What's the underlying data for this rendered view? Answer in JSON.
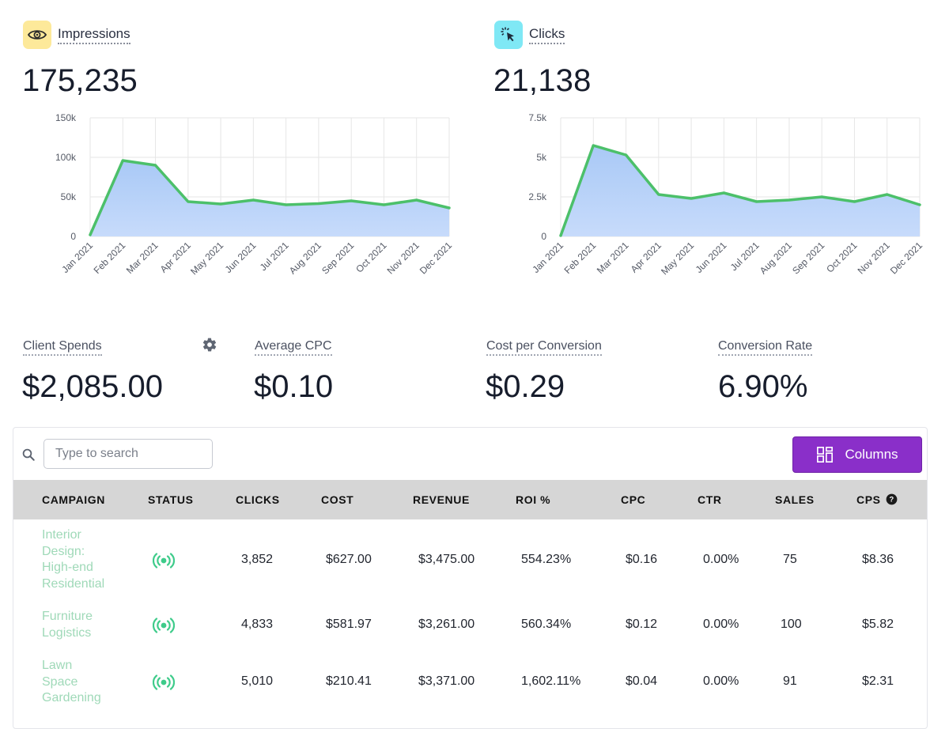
{
  "impressions": {
    "label": "Impressions",
    "icon": "eye-icon",
    "value": "175,235",
    "chart_data": {
      "type": "area",
      "categories": [
        "Jan 2021",
        "Feb 2021",
        "Mar 2021",
        "Apr 2021",
        "May 2021",
        "Jun 2021",
        "Jul 2021",
        "Aug 2021",
        "Sep 2021",
        "Oct 2021",
        "Nov 2021",
        "Dec 2021"
      ],
      "values": [
        2000,
        96000,
        90000,
        44000,
        41000,
        46000,
        40000,
        41500,
        45000,
        40000,
        46000,
        36000
      ],
      "ylim": [
        0,
        150000
      ],
      "yticks": [
        0,
        50000,
        100000,
        150000
      ],
      "ytick_labels": [
        "0",
        "50k",
        "100k",
        "150k"
      ],
      "line_color": "#4cc06a",
      "fill_color": "#a9c9f6",
      "grid": true
    }
  },
  "clicks": {
    "label": "Clicks",
    "icon": "cursor-click-icon",
    "value": "21,138",
    "chart_data": {
      "type": "area",
      "categories": [
        "Jan 2021",
        "Feb 2021",
        "Mar 2021",
        "Apr 2021",
        "May 2021",
        "Jun 2021",
        "Jul 2021",
        "Aug 2021",
        "Sep 2021",
        "Oct 2021",
        "Nov 2021",
        "Dec 2021"
      ],
      "values": [
        50,
        5750,
        5150,
        2650,
        2400,
        2750,
        2200,
        2300,
        2500,
        2200,
        2650,
        2000
      ],
      "ylim": [
        0,
        7500
      ],
      "yticks": [
        0,
        2500,
        5000,
        7500
      ],
      "ytick_labels": [
        "0",
        "2.5k",
        "5k",
        "7.5k"
      ],
      "line_color": "#4cc06a",
      "fill_color": "#a9c9f6",
      "grid": true
    }
  },
  "stats": {
    "client_spends": {
      "label": "Client Spends",
      "value": "$2,085.00"
    },
    "average_cpc": {
      "label": "Average CPC",
      "value": "$0.10"
    },
    "cost_per_conversion": {
      "label": "Cost per Conversion",
      "value": "$0.29"
    },
    "conversion_rate": {
      "label": "Conversion Rate",
      "value": "6.90%"
    }
  },
  "table": {
    "search_placeholder": "Type to search",
    "columns_button": "Columns",
    "headers": [
      "CAMPAIGN",
      "STATUS",
      "CLICKS",
      "COST",
      "REVENUE",
      "ROI %",
      "CPC",
      "CTR",
      "SALES",
      "CPS"
    ],
    "rows": [
      {
        "campaign": [
          "Interior",
          "Design:",
          "High-end",
          "Residential"
        ],
        "status": "active",
        "clicks": "3,852",
        "cost": "$627.00",
        "revenue": "$3,475.00",
        "roi": "554.23%",
        "cpc": "$0.16",
        "ctr": "0.00%",
        "sales": "75",
        "cps": "$8.36"
      },
      {
        "campaign": [
          "Furniture",
          "Logistics"
        ],
        "status": "active",
        "clicks": "4,833",
        "cost": "$581.97",
        "revenue": "$3,261.00",
        "roi": "560.34%",
        "cpc": "$0.12",
        "ctr": "0.00%",
        "sales": "100",
        "cps": "$5.82"
      },
      {
        "campaign": [
          "Lawn",
          "Space",
          "Gardening"
        ],
        "status": "active",
        "clicks": "5,010",
        "cost": "$210.41",
        "revenue": "$3,371.00",
        "roi": "1,602.11%",
        "cpc": "$0.04",
        "ctr": "0.00%",
        "sales": "91",
        "cps": "$2.31"
      }
    ]
  },
  "colors": {
    "accent": "#8a2fc9",
    "status_green": "#3ecb8a",
    "campaign_link": "#9fd9b8",
    "impressions_icon_bg": "#fde99a",
    "clicks_icon_bg": "#7fe8f5"
  }
}
